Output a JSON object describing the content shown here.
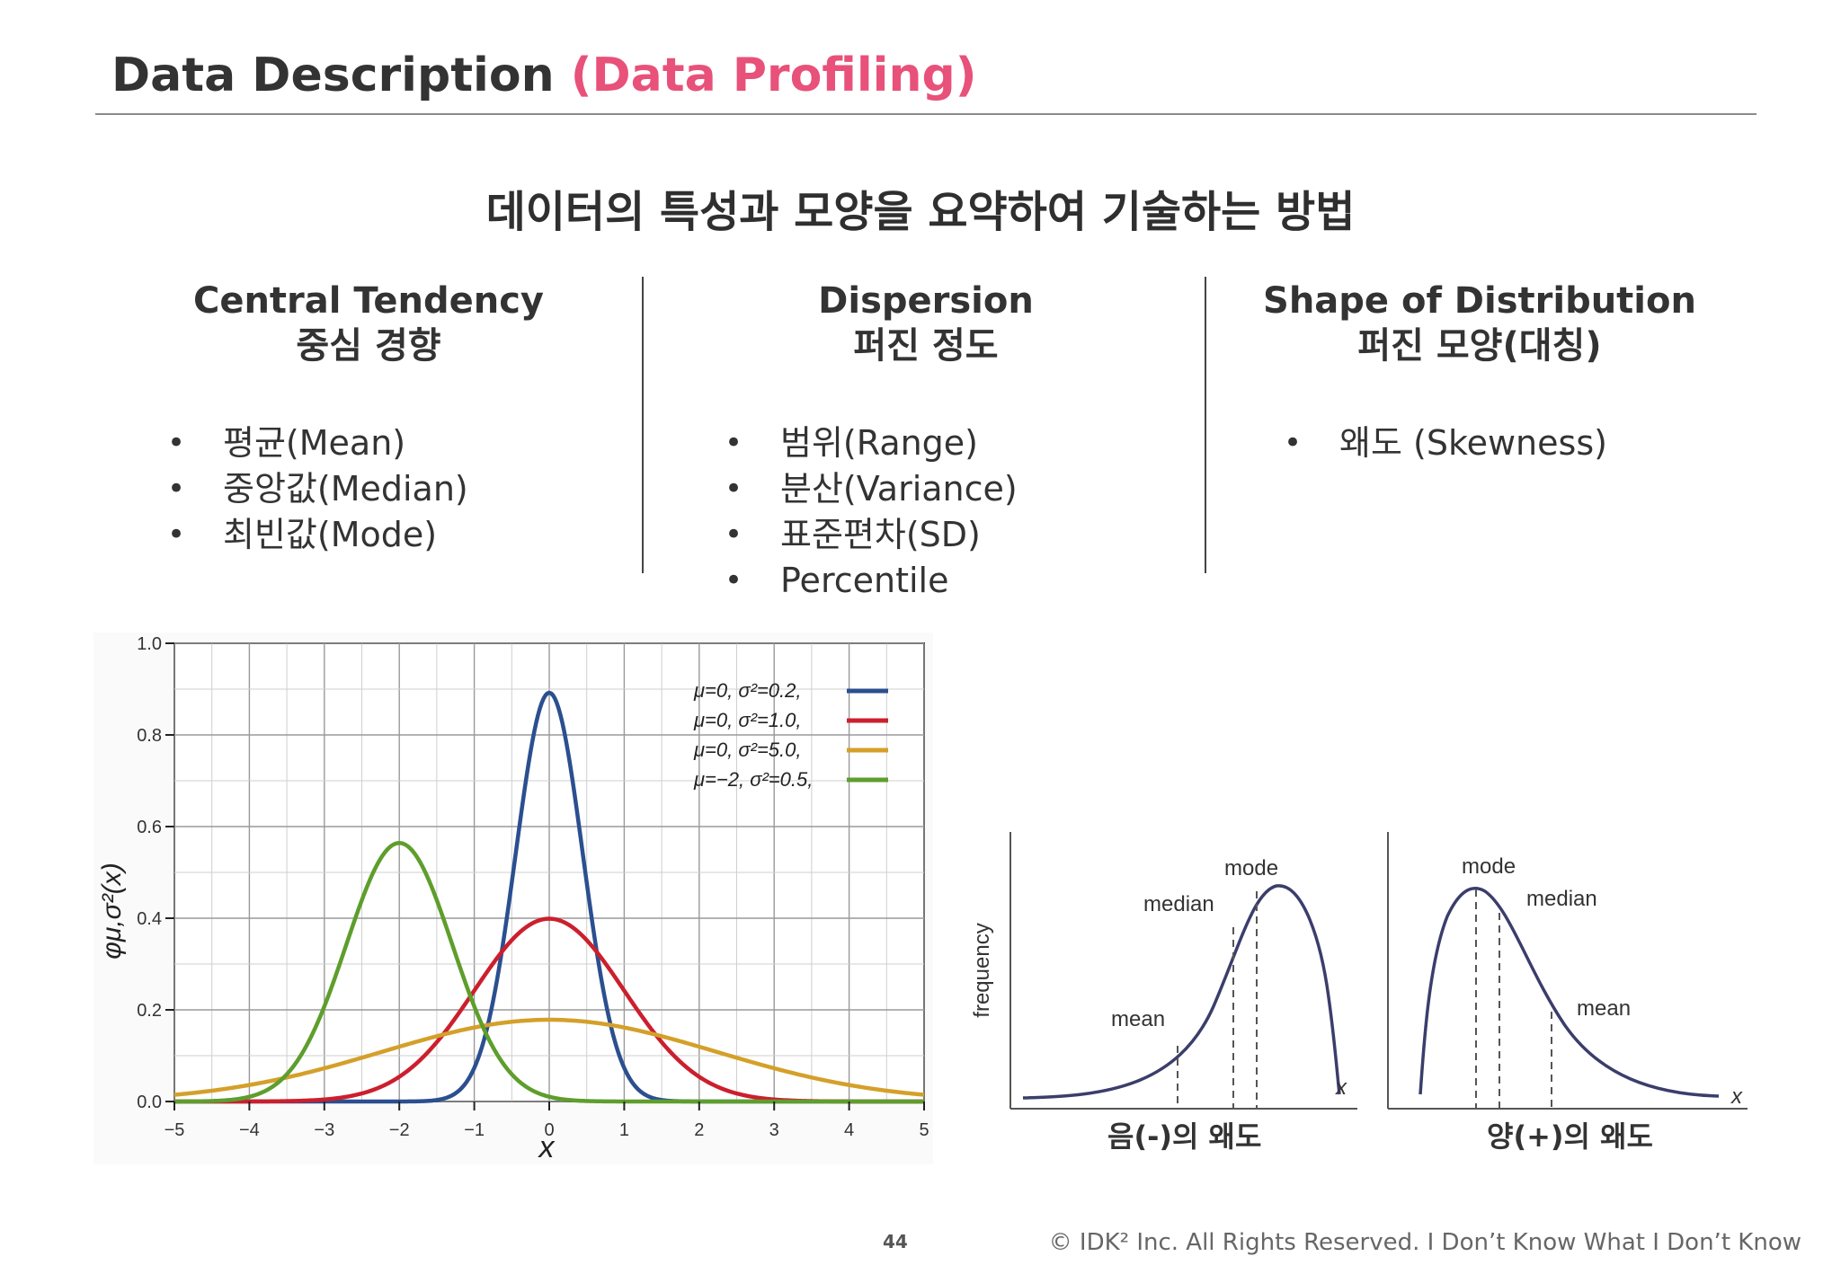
{
  "header": {
    "title": "Data Description",
    "title_accent": "(Data Profiling)"
  },
  "subtitle": "데이터의 특성과 모양을 요약하여 기술하는 방법",
  "columns": [
    {
      "heading_en": "Central Tendency",
      "heading_ko": "중심 경향",
      "items": [
        "평균(Mean)",
        "중앙값(Median)",
        "최빈값(Mode)"
      ]
    },
    {
      "heading_en": "Dispersion",
      "heading_ko": "퍼진 정도",
      "items": [
        "범위(Range)",
        "분산(Variance)",
        "표준편차(SD)",
        "Percentile"
      ]
    },
    {
      "heading_en": "Shape of Distribution",
      "heading_ko": "퍼진 모양(대칭)",
      "items": [
        "왜도 (Skewness)"
      ]
    }
  ],
  "chart_data": [
    {
      "type": "line",
      "xlabel": "x",
      "ylabel": "φμ,σ²(x)",
      "xlim": [
        -5,
        5
      ],
      "ylim": [
        0,
        1.0
      ],
      "x_ticks": [
        "−5",
        "−4",
        "−3",
        "−2",
        "−1",
        "0",
        "1",
        "2",
        "3",
        "4",
        "5"
      ],
      "y_ticks": [
        "0.0",
        "0.2",
        "0.4",
        "0.6",
        "0.8",
        "1.0"
      ],
      "grid": true,
      "legend_position": "top-right",
      "series": [
        {
          "name": "μ=0,   σ²=0.2,",
          "mu": 0,
          "variance": 0.2,
          "color": "#2b4f8f",
          "peak": 0.89
        },
        {
          "name": "μ=0,   σ²=1.0,",
          "mu": 0,
          "variance": 1.0,
          "color": "#cc1f2d",
          "peak": 0.4
        },
        {
          "name": "μ=0,   σ²=5.0,",
          "mu": 0,
          "variance": 5.0,
          "color": "#d4a02a",
          "peak": 0.18
        },
        {
          "name": "μ=−2, σ²=0.5,",
          "mu": -2,
          "variance": 0.5,
          "color": "#5e9e2c",
          "peak": 0.56
        }
      ]
    },
    {
      "type": "line",
      "caption": "음(-)의 왜도",
      "ylabel": "frequency",
      "xlabel": "x",
      "annotations": [
        "mode",
        "median",
        "mean"
      ]
    },
    {
      "type": "line",
      "caption": "양(+)의 왜도",
      "xlabel": "x",
      "annotations": [
        "mode",
        "median",
        "mean"
      ]
    }
  ],
  "footer": {
    "page_number": "44",
    "copyright": "© IDK² Inc. All Rights Reserved.  I Don’t Know What I Don’t Know"
  }
}
